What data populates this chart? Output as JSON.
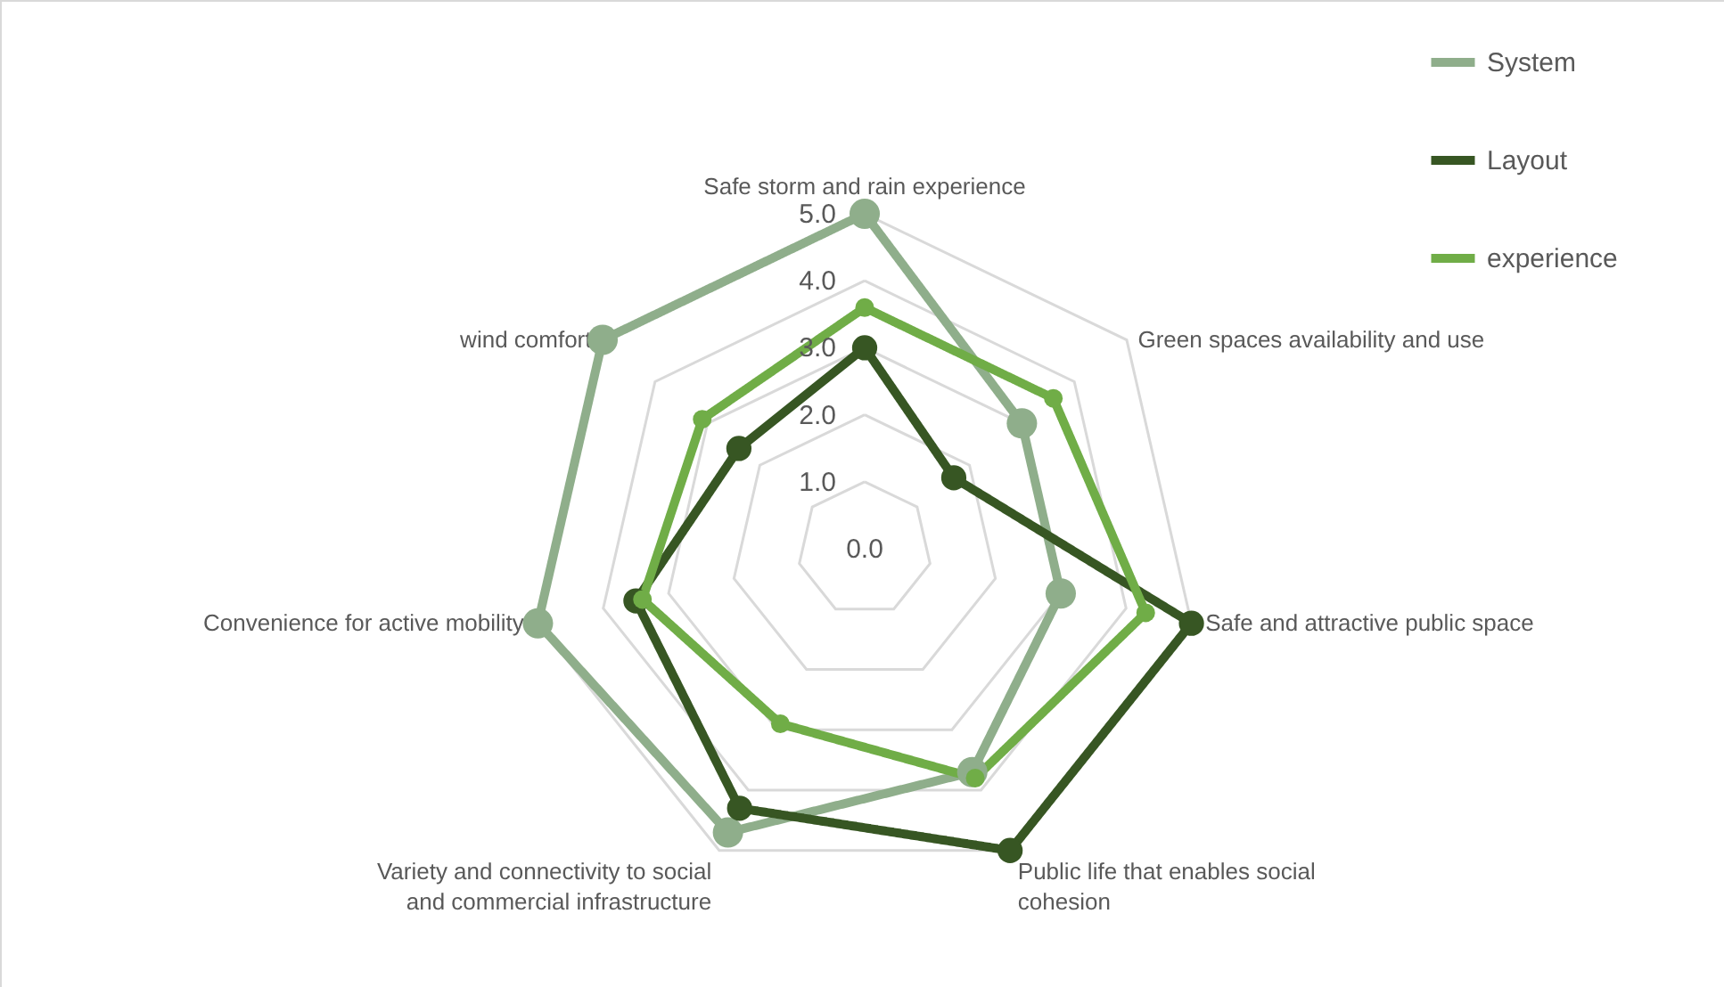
{
  "chart_data": {
    "type": "radar",
    "categories": [
      "Safe storm and rain experience",
      "Green spaces availability and use",
      "Safe and attractive public space",
      "Public life that enables social cohesion",
      "Variety and connectivity to social and commercial infrastructure",
      "Convenience for active mobility",
      "wind comfort"
    ],
    "series": [
      {
        "name": "System",
        "color": "#8fae8b",
        "values": [
          5.0,
          3.0,
          3.0,
          3.7,
          4.7,
          5.0,
          5.0
        ]
      },
      {
        "name": "Layout",
        "color": "#375623",
        "values": [
          3.0,
          1.7,
          5.0,
          5.0,
          4.3,
          3.5,
          2.4
        ]
      },
      {
        "name": "experience",
        "color": "#70ad47",
        "values": [
          3.6,
          3.6,
          4.3,
          3.8,
          2.9,
          3.4,
          3.1
        ]
      }
    ],
    "ylim": [
      0,
      5
    ],
    "yticks": [
      {
        "value": 0,
        "label": "0.0"
      },
      {
        "value": 1,
        "label": "1.0"
      },
      {
        "value": 2,
        "label": "2.0"
      },
      {
        "value": 3,
        "label": "3.0"
      },
      {
        "value": 4,
        "label": "4.0"
      },
      {
        "value": 5,
        "label": "5.0"
      }
    ],
    "grid": true,
    "legend": "top right",
    "marker": "circle",
    "line_style": "solid"
  }
}
